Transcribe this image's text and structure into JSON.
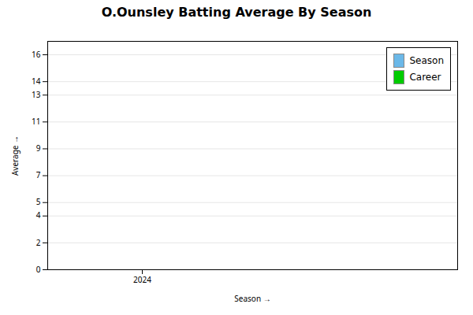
{
  "chart_data": {
    "type": "bar",
    "title": "O.Ounsley Batting Average By Season",
    "xlabel": "Season",
    "ylabel": "Average",
    "x": [],
    "series": [
      {
        "name": "Season",
        "color": "#6BB8E8",
        "values": []
      },
      {
        "name": "Career",
        "color": "#00CC00",
        "values": []
      }
    ],
    "xlim": [
      2023.7,
      2025.0
    ],
    "xticks": [
      2024
    ],
    "ylim": [
      0,
      17
    ],
    "yticks": [
      0,
      2,
      4,
      5,
      7,
      9,
      11,
      13,
      14,
      16
    ],
    "grid": true,
    "legend": "upper right"
  }
}
